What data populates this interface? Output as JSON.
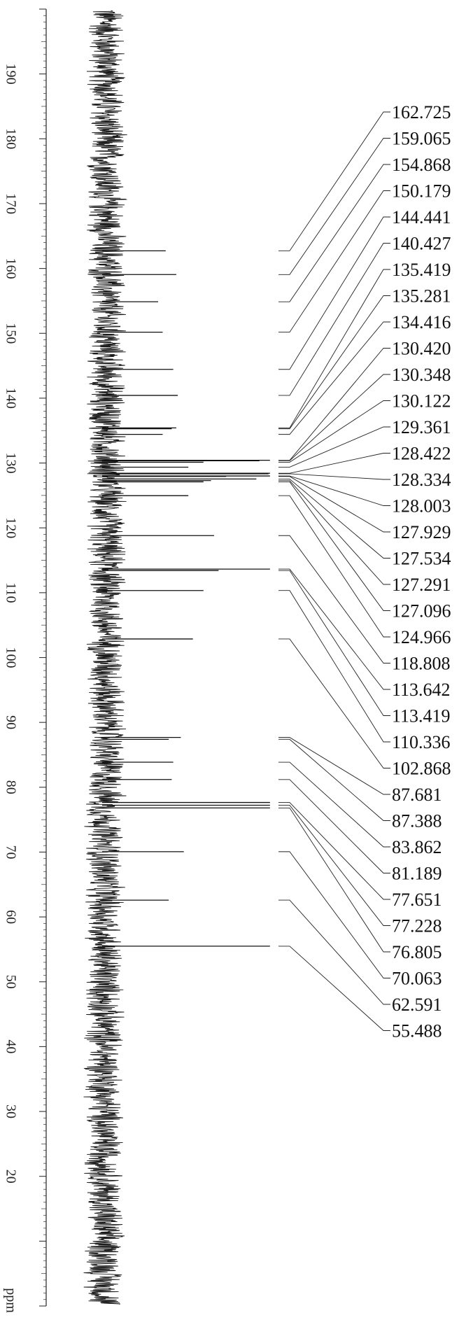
{
  "chart_data": {
    "type": "line",
    "title": "",
    "xlabel": "ppm",
    "x_ticks": [
      190,
      180,
      170,
      160,
      150,
      140,
      130,
      120,
      110,
      100,
      90,
      80,
      70,
      60,
      50,
      40,
      30,
      20
    ],
    "x_range": [
      0,
      200
    ],
    "peaks": [
      {
        "ppm": 162.725,
        "label": "162.725",
        "intensity": 0.3
      },
      {
        "ppm": 159.065,
        "label": "159.065",
        "intensity": 0.37
      },
      {
        "ppm": 154.868,
        "label": "154.868",
        "intensity": 0.25
      },
      {
        "ppm": 150.179,
        "label": "150.179",
        "intensity": 0.28
      },
      {
        "ppm": 144.441,
        "label": "144.441",
        "intensity": 0.35
      },
      {
        "ppm": 140.427,
        "label": "140.427",
        "intensity": 0.38
      },
      {
        "ppm": 135.419,
        "label": "135.419",
        "intensity": 0.37
      },
      {
        "ppm": 135.281,
        "label": "135.281",
        "intensity": 0.34
      },
      {
        "ppm": 134.416,
        "label": "134.416",
        "intensity": 0.28
      },
      {
        "ppm": 130.42,
        "label": "130.420",
        "intensity": 0.99
      },
      {
        "ppm": 130.348,
        "label": "130.348",
        "intensity": 0.92
      },
      {
        "ppm": 130.122,
        "label": "130.122",
        "intensity": 0.55
      },
      {
        "ppm": 129.361,
        "label": "129.361",
        "intensity": 0.45
      },
      {
        "ppm": 128.422,
        "label": "128.422",
        "intensity": 0.99
      },
      {
        "ppm": 128.334,
        "label": "128.334",
        "intensity": 0.98
      },
      {
        "ppm": 128.003,
        "label": "128.003",
        "intensity": 0.99
      },
      {
        "ppm": 127.929,
        "label": "127.929",
        "intensity": 0.7
      },
      {
        "ppm": 127.534,
        "label": "127.534",
        "intensity": 0.9
      },
      {
        "ppm": 127.291,
        "label": "127.291",
        "intensity": 0.6
      },
      {
        "ppm": 127.096,
        "label": "127.096",
        "intensity": 0.55
      },
      {
        "ppm": 124.966,
        "label": "124.966",
        "intensity": 0.45
      },
      {
        "ppm": 118.808,
        "label": "118.808",
        "intensity": 0.62
      },
      {
        "ppm": 113.642,
        "label": "113.642",
        "intensity": 0.99
      },
      {
        "ppm": 113.419,
        "label": "113.419",
        "intensity": 0.65
      },
      {
        "ppm": 110.336,
        "label": "110.336",
        "intensity": 0.55
      },
      {
        "ppm": 102.868,
        "label": "102.868",
        "intensity": 0.48
      },
      {
        "ppm": 87.681,
        "label": "87.681",
        "intensity": 0.4
      },
      {
        "ppm": 87.388,
        "label": "87.388",
        "intensity": 0.32
      },
      {
        "ppm": 83.862,
        "label": "83.862",
        "intensity": 0.35
      },
      {
        "ppm": 81.189,
        "label": "81.189",
        "intensity": 0.34
      },
      {
        "ppm": 77.651,
        "label": "77.651",
        "intensity": 0.99
      },
      {
        "ppm": 77.228,
        "label": "77.228",
        "intensity": 0.99
      },
      {
        "ppm": 76.805,
        "label": "76.805",
        "intensity": 0.99
      },
      {
        "ppm": 70.063,
        "label": "70.063",
        "intensity": 0.42
      },
      {
        "ppm": 62.591,
        "label": "62.591",
        "intensity": 0.32
      },
      {
        "ppm": 55.488,
        "label": "55.488",
        "intensity": 0.99
      }
    ]
  }
}
